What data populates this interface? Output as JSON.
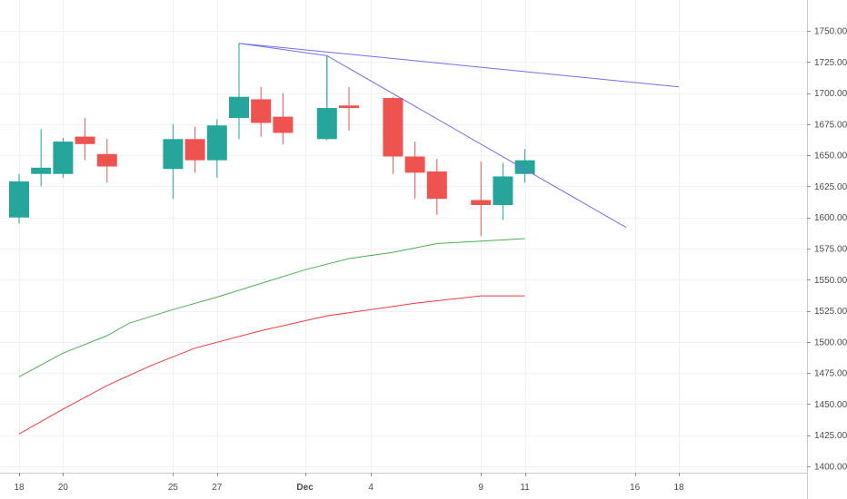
{
  "chart_data": {
    "type": "candlestick",
    "y_axis": {
      "range": [
        1395,
        1770
      ],
      "position": "right",
      "ticks": [
        1400,
        1425,
        1450,
        1475,
        1500,
        1525,
        1550,
        1575,
        1600,
        1625,
        1650,
        1675,
        1700,
        1725,
        1750
      ],
      "tick_labels": [
        "1400.00",
        "1425.00",
        "1450.00",
        "1475.00",
        "1500.00",
        "1525.00",
        "1550.00",
        "1575.00",
        "1600.00",
        "1625.00",
        "1650.00",
        "1675.00",
        "1700.00",
        "1725.00",
        "1750.00"
      ]
    },
    "x_axis": {
      "range_days": [
        -0.2,
        30.5
      ],
      "ticks": [
        {
          "day": 0,
          "label": "18",
          "bold": false
        },
        {
          "day": 2,
          "label": "20",
          "bold": false
        },
        {
          "day": 7,
          "label": "25",
          "bold": false
        },
        {
          "day": 9,
          "label": "27",
          "bold": false
        },
        {
          "day": 13,
          "label": "Dec",
          "bold": true
        },
        {
          "day": 16,
          "label": "4",
          "bold": false
        },
        {
          "day": 21,
          "label": "9",
          "bold": false
        },
        {
          "day": 23,
          "label": "11",
          "bold": false
        },
        {
          "day": 28,
          "label": "16",
          "bold": false
        },
        {
          "day": 30,
          "label": "18",
          "bold": false
        }
      ]
    },
    "grid": true,
    "colors": {
      "up": "#26a69a",
      "down": "#ef5350",
      "trendline": "#6f6ff0",
      "ma_fast": "#4caf50",
      "ma_slow": "#f23b3b"
    },
    "candles": [
      {
        "day": 0,
        "open": 1600,
        "high": 1635,
        "low": 1595,
        "close": 1629
      },
      {
        "day": 1,
        "open": 1635,
        "high": 1671,
        "low": 1625,
        "close": 1640
      },
      {
        "day": 2,
        "open": 1635,
        "high": 1664,
        "low": 1632,
        "close": 1661
      },
      {
        "day": 3,
        "open": 1665,
        "high": 1680,
        "low": 1646,
        "close": 1659
      },
      {
        "day": 4,
        "open": 1651,
        "high": 1663,
        "low": 1628,
        "close": 1641
      },
      {
        "day": 7,
        "open": 1639,
        "high": 1675,
        "low": 1615,
        "close": 1663
      },
      {
        "day": 8,
        "open": 1663,
        "high": 1673,
        "low": 1636,
        "close": 1646
      },
      {
        "day": 9,
        "open": 1646,
        "high": 1679,
        "low": 1632,
        "close": 1674
      },
      {
        "day": 10,
        "open": 1680,
        "high": 1698,
        "low": 1663,
        "close": 1697
      },
      {
        "day": 11,
        "open": 1695,
        "high": 1705,
        "low": 1665,
        "close": 1676
      },
      {
        "day": 12,
        "open": 1681,
        "high": 1700,
        "low": 1659,
        "close": 1668
      },
      {
        "day": 14,
        "open": 1663,
        "high": 1730,
        "low": 1662,
        "close": 1688
      },
      {
        "day": 15,
        "open": 1690,
        "high": 1705,
        "low": 1670,
        "close": 1688
      },
      {
        "day": 17,
        "open": 1696,
        "high": 1697,
        "low": 1635,
        "close": 1649
      },
      {
        "day": 18,
        "open": 1649,
        "high": 1661,
        "low": 1615,
        "close": 1636
      },
      {
        "day": 19,
        "open": 1637,
        "high": 1647,
        "low": 1602,
        "close": 1615
      },
      {
        "day": 21,
        "open": 1614,
        "high": 1645,
        "low": 1585,
        "close": 1610
      },
      {
        "day": 22,
        "open": 1610,
        "high": 1644,
        "low": 1598,
        "close": 1633
      },
      {
        "day": 23,
        "open": 1635,
        "high": 1655,
        "low": 1628,
        "close": 1646
      }
    ],
    "moving_averages": [
      {
        "color": "#4caf50",
        "points": [
          [
            0,
            1472
          ],
          [
            2,
            1491
          ],
          [
            4,
            1505
          ],
          [
            5,
            1515
          ],
          [
            7,
            1526
          ],
          [
            9,
            1536
          ],
          [
            11,
            1547
          ],
          [
            13,
            1558
          ],
          [
            15,
            1567
          ],
          [
            17,
            1572
          ],
          [
            19,
            1579
          ],
          [
            23,
            1583
          ]
        ]
      },
      {
        "color": "#f23b3b",
        "points": [
          [
            0,
            1426
          ],
          [
            2,
            1446
          ],
          [
            4,
            1465
          ],
          [
            6,
            1481
          ],
          [
            8,
            1495
          ],
          [
            11,
            1509
          ],
          [
            14,
            1521
          ],
          [
            18,
            1531
          ],
          [
            21,
            1537
          ],
          [
            23,
            1537
          ]
        ]
      }
    ],
    "trendlines": [
      {
        "color": "#6f6ff0",
        "points": [
          [
            10,
            1740
          ],
          [
            14,
            1730
          ]
        ]
      },
      {
        "color": "#6f6ff0",
        "points": [
          [
            10,
            1740
          ],
          [
            30,
            1705
          ]
        ]
      },
      {
        "color": "#6f6ff0",
        "points": [
          [
            14,
            1730
          ],
          [
            27.6,
            1592
          ]
        ]
      },
      {
        "color": "#26a69a",
        "points": [
          [
            10,
            1740
          ],
          [
            10,
            1697
          ]
        ]
      },
      {
        "color": "#26a69a",
        "points": [
          [
            14,
            1730
          ],
          [
            14,
            1688
          ]
        ]
      }
    ]
  }
}
